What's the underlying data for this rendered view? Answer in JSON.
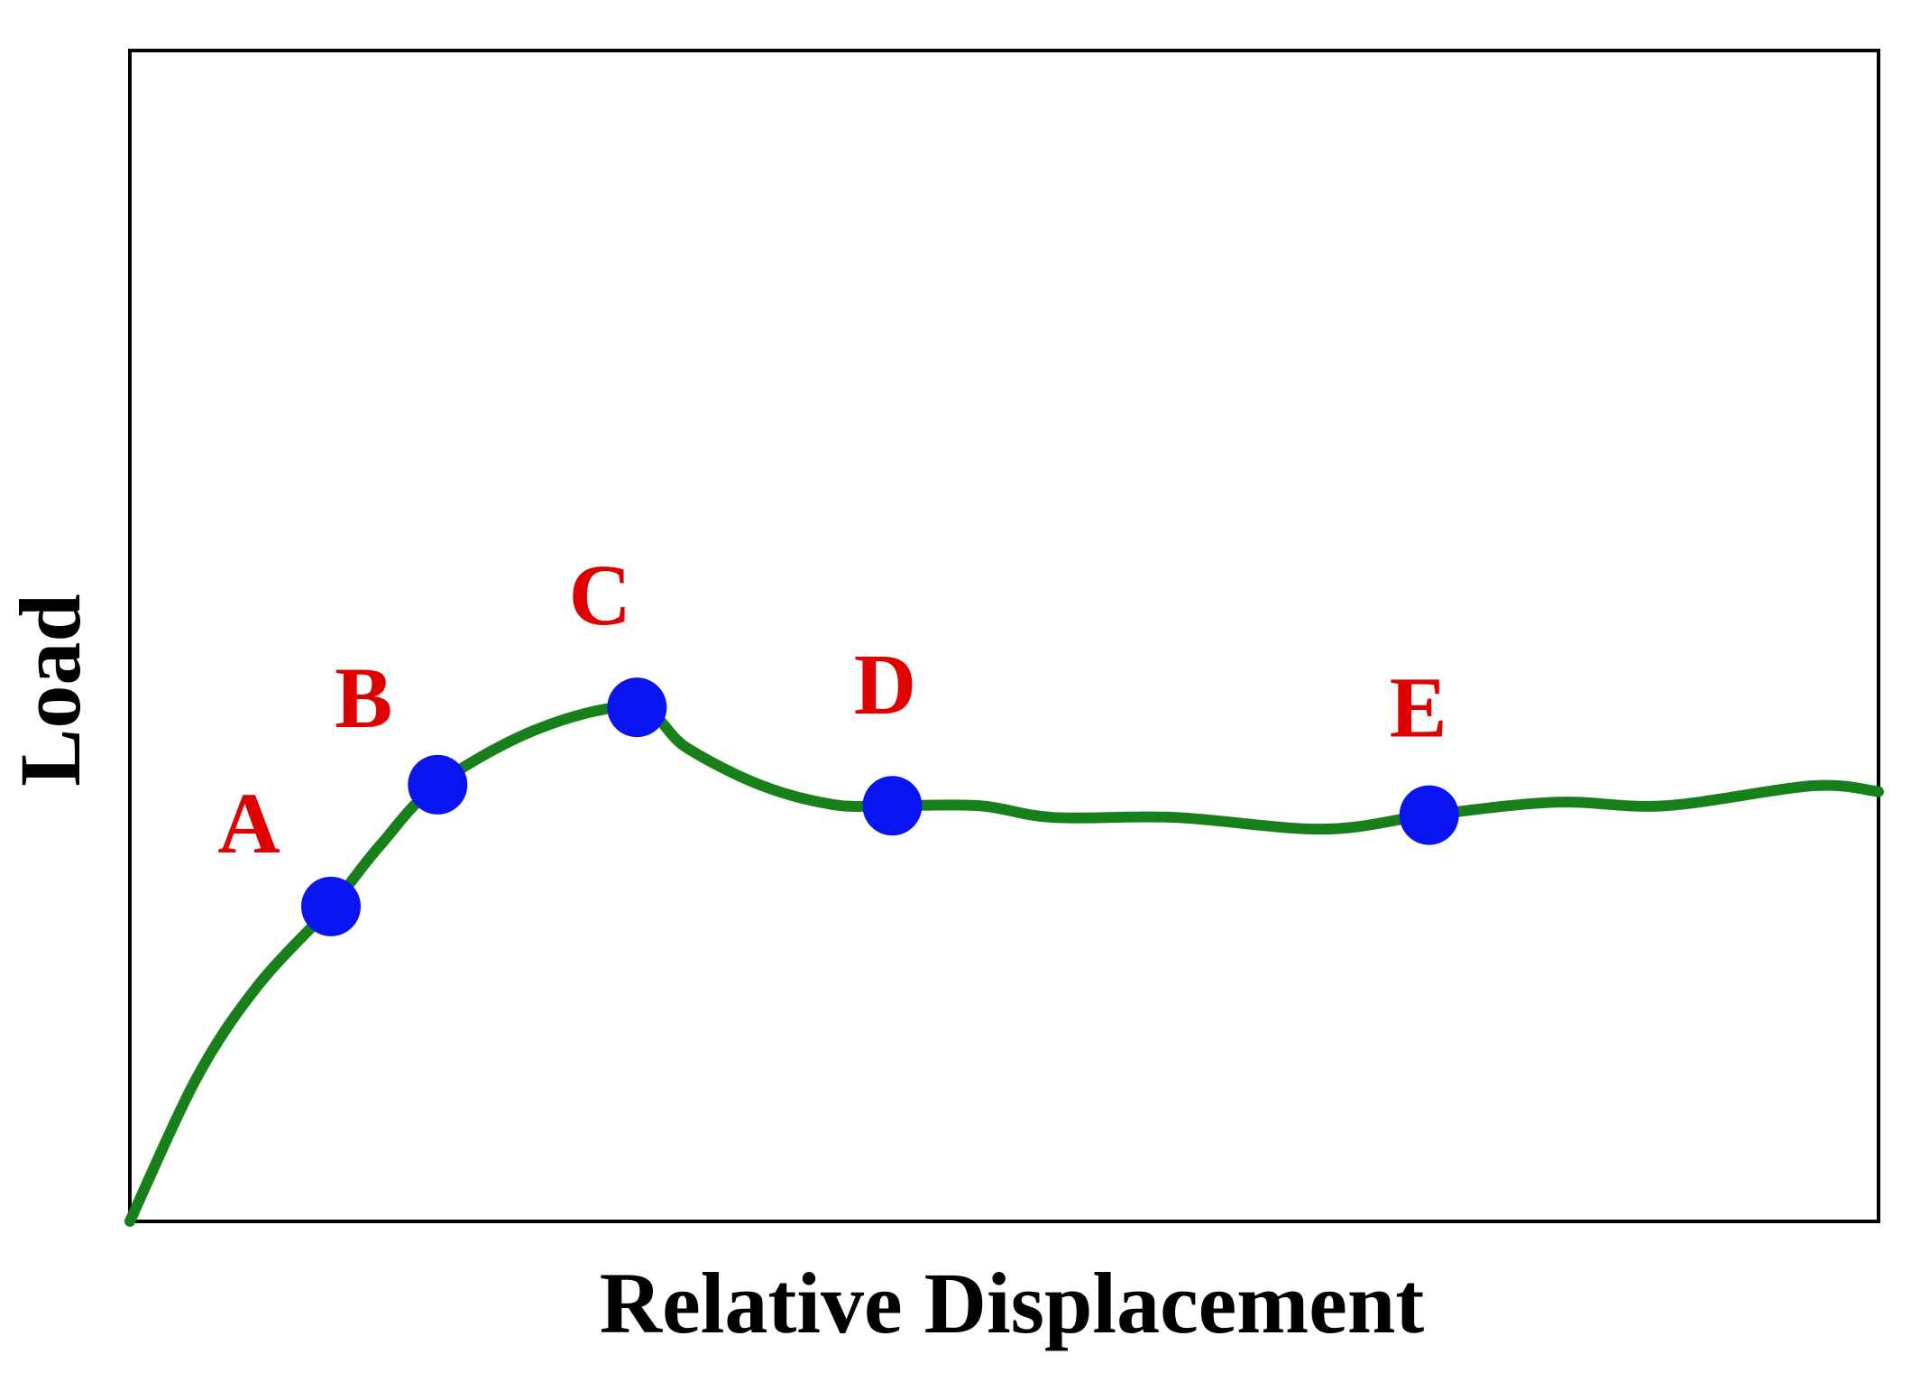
{
  "chart_data": {
    "type": "line",
    "x_label": "Relative Displacement",
    "y_label": "Load",
    "xlim": [
      0,
      1
    ],
    "ylim": [
      0,
      1
    ],
    "series": [
      {
        "color": "#17801a",
        "x": [
          0,
          0.038,
          0.073,
          0.115,
          0.143,
          0.176,
          0.234,
          0.29,
          0.318,
          0.36,
          0.402,
          0.436,
          0.486,
          0.528,
          0.598,
          0.682,
          0.743,
          0.815,
          0.878,
          0.962,
          1.0
        ],
        "values": [
          0,
          0.122,
          0.201,
          0.269,
          0.321,
          0.373,
          0.421,
          0.439,
          0.405,
          0.373,
          0.356,
          0.355,
          0.355,
          0.345,
          0.345,
          0.335,
          0.347,
          0.358,
          0.355,
          0.372,
          0.367
        ]
      }
    ],
    "points": {
      "color": "#0a14f0",
      "label_color": "#e00000",
      "labels": [
        "A",
        "B",
        "C",
        "D",
        "E"
      ],
      "x": [
        0.115,
        0.176,
        0.29,
        0.436,
        0.743
      ],
      "values": [
        0.269,
        0.373,
        0.439,
        0.355,
        0.347
      ]
    }
  }
}
